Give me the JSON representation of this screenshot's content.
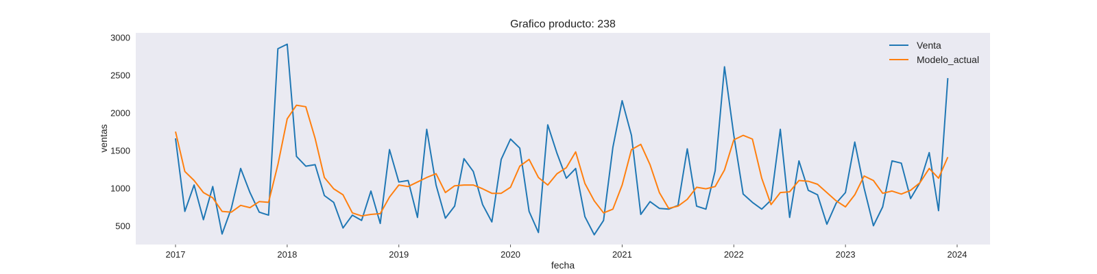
{
  "chart_data": {
    "type": "line",
    "title": "Grafico producto: 238",
    "xlabel": "fecha",
    "ylabel": "ventas",
    "x_start": "2017-01",
    "x_ticks": [
      "2017",
      "2018",
      "2019",
      "2020",
      "2021",
      "2022",
      "2023",
      "2024"
    ],
    "y_ticks": [
      "500",
      "1000",
      "1500",
      "2000",
      "2500",
      "3000"
    ],
    "ylim": [
      250,
      3060
    ],
    "grid": false,
    "legend_position": "top-right",
    "series": [
      {
        "name": "Venta",
        "color": "#1f77b4",
        "values": [
          1660,
          690,
          1040,
          580,
          1020,
          390,
          730,
          1260,
          940,
          680,
          640,
          2850,
          2910,
          1420,
          1290,
          1310,
          900,
          810,
          470,
          640,
          570,
          960,
          530,
          1510,
          1080,
          1100,
          610,
          1780,
          1040,
          600,
          760,
          1390,
          1220,
          780,
          550,
          1380,
          1650,
          1530,
          690,
          410,
          1840,
          1460,
          1130,
          1260,
          620,
          380,
          570,
          1540,
          2160,
          1700,
          650,
          820,
          730,
          720,
          770,
          1520,
          760,
          720,
          1230,
          2610,
          1700,
          920,
          810,
          720,
          840,
          1780,
          610,
          1360,
          970,
          910,
          520,
          800,
          940,
          1610,
          1000,
          500,
          750,
          1360,
          1330,
          860,
          1070,
          1470,
          700,
          2460
        ]
      },
      {
        "name": "Modelo_actual",
        "color": "#ff7f0e",
        "values": [
          1750,
          1220,
          1100,
          940,
          870,
          690,
          680,
          770,
          740,
          820,
          810,
          1310,
          1920,
          2100,
          2080,
          1660,
          1140,
          990,
          910,
          670,
          630,
          650,
          660,
          880,
          1040,
          1020,
          1080,
          1140,
          1190,
          940,
          1030,
          1040,
          1040,
          990,
          930,
          930,
          1010,
          1290,
          1380,
          1140,
          1040,
          1190,
          1270,
          1480,
          1060,
          830,
          670,
          720,
          1040,
          1510,
          1580,
          1310,
          940,
          730,
          760,
          850,
          1010,
          990,
          1020,
          1240,
          1640,
          1700,
          1650,
          1130,
          780,
          940,
          950,
          1100,
          1090,
          1050,
          940,
          830,
          750,
          910,
          1160,
          1100,
          930,
          960,
          920,
          970,
          1070,
          1260,
          1130,
          1410
        ]
      }
    ]
  }
}
